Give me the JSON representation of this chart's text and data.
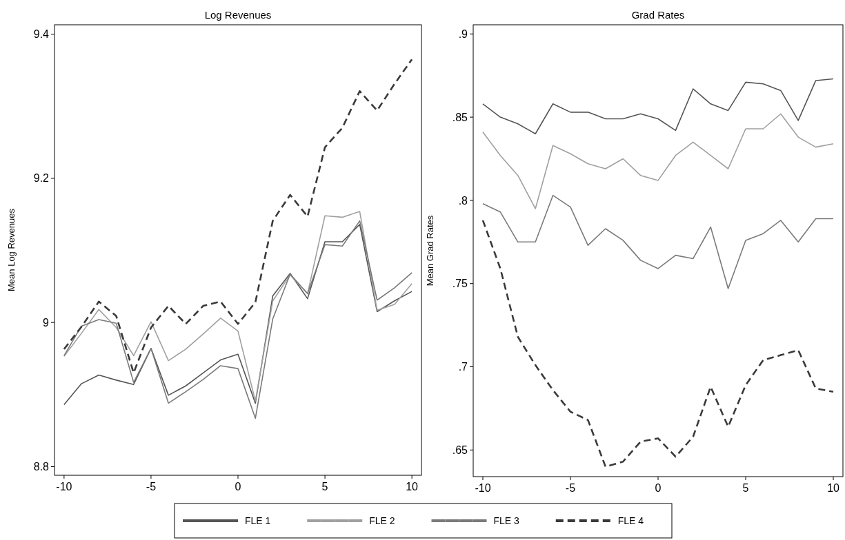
{
  "chart_data": [
    {
      "type": "line",
      "title": "Log Revenues",
      "ylabel": "Mean Log Revenues",
      "x": [
        -10,
        -9,
        -8,
        -7,
        -6,
        -5,
        -4,
        -3,
        -2,
        -1,
        0,
        1,
        2,
        3,
        4,
        5,
        6,
        7,
        8,
        9,
        10
      ],
      "xlim": [
        -10.55,
        10.55
      ],
      "xticks": [
        -10,
        -5,
        0,
        5,
        10
      ],
      "ylim": [
        8.788,
        9.413
      ],
      "yticks": [
        8.8,
        9,
        9.2,
        9.4
      ],
      "legend": "bottom",
      "grid": false,
      "series": [
        {
          "name": "FLE 1",
          "color": "#555555",
          "line_style": "solid",
          "values": [
            8.886,
            8.915,
            8.927,
            8.92,
            8.914,
            8.964,
            8.899,
            8.912,
            8.93,
            8.948,
            8.956,
            8.888,
            9.037,
            9.068,
            9.033,
            9.112,
            9.112,
            9.136,
            9.015,
            9.03,
            9.043
          ]
        },
        {
          "name": "FLE 2",
          "color": "#a0a0a0",
          "line_style": "solid",
          "values": [
            8.953,
            8.985,
            9.018,
            8.993,
            8.954,
            9.001,
            8.947,
            8.963,
            8.984,
            9.006,
            8.988,
            8.891,
            9.03,
            9.066,
            9.04,
            9.148,
            9.146,
            9.154,
            9.017,
            9.025,
            9.054
          ]
        },
        {
          "name": "FLE 3",
          "color": "#7a7a7a",
          "line_style": "solid",
          "values": [
            8.954,
            8.995,
            9.004,
            8.999,
            8.917,
            8.964,
            8.888,
            8.904,
            8.921,
            8.94,
            8.936,
            8.867,
            9.005,
            9.067,
            9.04,
            9.108,
            9.106,
            9.141,
            9.031,
            9.048,
            9.069
          ]
        },
        {
          "name": "FLE 4",
          "color": "#3a3a3a",
          "line_style": "dashed",
          "values": [
            8.963,
            8.994,
            9.029,
            9.009,
            8.93,
            8.993,
            9.023,
            8.998,
            9.023,
            9.029,
            8.998,
            9.028,
            9.141,
            9.177,
            9.147,
            9.243,
            9.27,
            9.321,
            9.294,
            9.331,
            9.365
          ]
        }
      ]
    },
    {
      "type": "line",
      "title": "Grad Rates",
      "ylabel": "Mean Grad Rates",
      "x": [
        -10,
        -9,
        -8,
        -7,
        -6,
        -5,
        -4,
        -3,
        -2,
        -1,
        0,
        1,
        2,
        3,
        4,
        5,
        6,
        7,
        8,
        9,
        10
      ],
      "xlim": [
        -10.55,
        10.55
      ],
      "xticks": [
        -10,
        -5,
        0,
        5,
        10
      ],
      "ylim": [
        0.634,
        0.9055
      ],
      "yticks": [
        {
          "value": 0.65,
          "label": ".65"
        },
        {
          "value": 0.7,
          "label": ".7"
        },
        {
          "value": 0.75,
          "label": ".75"
        },
        {
          "value": 0.8,
          "label": ".8"
        },
        {
          "value": 0.85,
          "label": ".85"
        },
        {
          "value": 0.9,
          "label": ".9"
        }
      ],
      "grid": false,
      "series": [
        {
          "color": "#555555",
          "line_style": "solid",
          "values": [
            0.858,
            0.85,
            0.846,
            0.84,
            0.858,
            0.853,
            0.853,
            0.849,
            0.849,
            0.852,
            0.849,
            0.842,
            0.867,
            0.858,
            0.854,
            0.871,
            0.87,
            0.866,
            0.848,
            0.872,
            0.873
          ]
        },
        {
          "color": "#a0a0a0",
          "line_style": "solid",
          "values": [
            0.841,
            0.827,
            0.815,
            0.795,
            0.833,
            0.828,
            0.822,
            0.819,
            0.825,
            0.815,
            0.812,
            0.827,
            0.835,
            0.827,
            0.819,
            0.843,
            0.843,
            0.852,
            0.838,
            0.832,
            0.834
          ]
        },
        {
          "color": "#7a7a7a",
          "line_style": "solid",
          "values": [
            0.798,
            0.793,
            0.775,
            0.775,
            0.803,
            0.796,
            0.773,
            0.783,
            0.776,
            0.764,
            0.759,
            0.767,
            0.765,
            0.784,
            0.747,
            0.776,
            0.78,
            0.788,
            0.775,
            0.789,
            0.789
          ]
        },
        {
          "color": "#3a3a3a",
          "line_style": "dashed",
          "values": [
            0.788,
            0.759,
            0.718,
            0.701,
            0.686,
            0.673,
            0.668,
            0.64,
            0.643,
            0.655,
            0.657,
            0.646,
            0.658,
            0.688,
            0.664,
            0.689,
            0.704,
            0.707,
            0.71,
            0.687,
            0.685
          ]
        }
      ]
    }
  ]
}
